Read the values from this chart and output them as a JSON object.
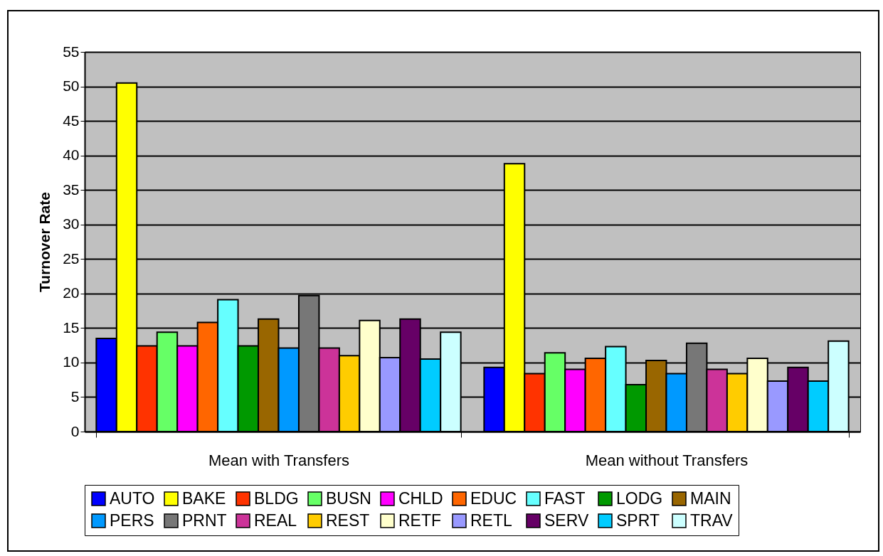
{
  "chart_data": {
    "type": "bar",
    "ylabel": "Turnover Rate",
    "categories": [
      "Mean with Transfers",
      "Mean without Transfers"
    ],
    "series": [
      {
        "name": "AUTO",
        "color": "#0000ff",
        "values": [
          13.5,
          9.3
        ]
      },
      {
        "name": "BAKE",
        "color": "#ffff00",
        "values": [
          50.5,
          38.8
        ]
      },
      {
        "name": "BLDG",
        "color": "#ff3300",
        "values": [
          12.4,
          8.4
        ]
      },
      {
        "name": "BUSN",
        "color": "#66ff66",
        "values": [
          14.4,
          11.4
        ]
      },
      {
        "name": "CHLD",
        "color": "#ff00ff",
        "values": [
          12.4,
          9.0
        ]
      },
      {
        "name": "EDUC",
        "color": "#ff6600",
        "values": [
          15.8,
          10.6
        ]
      },
      {
        "name": "FAST",
        "color": "#66ffff",
        "values": [
          19.1,
          12.3
        ]
      },
      {
        "name": "LODG",
        "color": "#009900",
        "values": [
          12.4,
          6.8
        ]
      },
      {
        "name": "MAIN",
        "color": "#996600",
        "values": [
          16.3,
          10.3
        ]
      },
      {
        "name": "PERS",
        "color": "#0099ff",
        "values": [
          12.1,
          8.4
        ]
      },
      {
        "name": "PRNT",
        "color": "#777777",
        "values": [
          19.7,
          12.8
        ]
      },
      {
        "name": "REAL",
        "color": "#cc3399",
        "values": [
          12.1,
          9.0
        ]
      },
      {
        "name": "REST",
        "color": "#ffcc00",
        "values": [
          11.0,
          8.4
        ]
      },
      {
        "name": "RETF",
        "color": "#ffffcc",
        "values": [
          16.1,
          10.6
        ]
      },
      {
        "name": "RETL",
        "color": "#9999ff",
        "values": [
          10.7,
          7.3
        ]
      },
      {
        "name": "SERV",
        "color": "#660066",
        "values": [
          16.3,
          9.3
        ]
      },
      {
        "name": "SPRT",
        "color": "#00ccff",
        "values": [
          10.5,
          7.3
        ]
      },
      {
        "name": "TRAV",
        "color": "#ccffff",
        "values": [
          14.4,
          13.1
        ]
      }
    ],
    "ylim": [
      0,
      55
    ],
    "yticks": [
      0,
      5,
      10,
      15,
      20,
      25,
      30,
      35,
      40,
      45,
      50,
      55
    ],
    "grid": "y",
    "legend": "bottom"
  }
}
